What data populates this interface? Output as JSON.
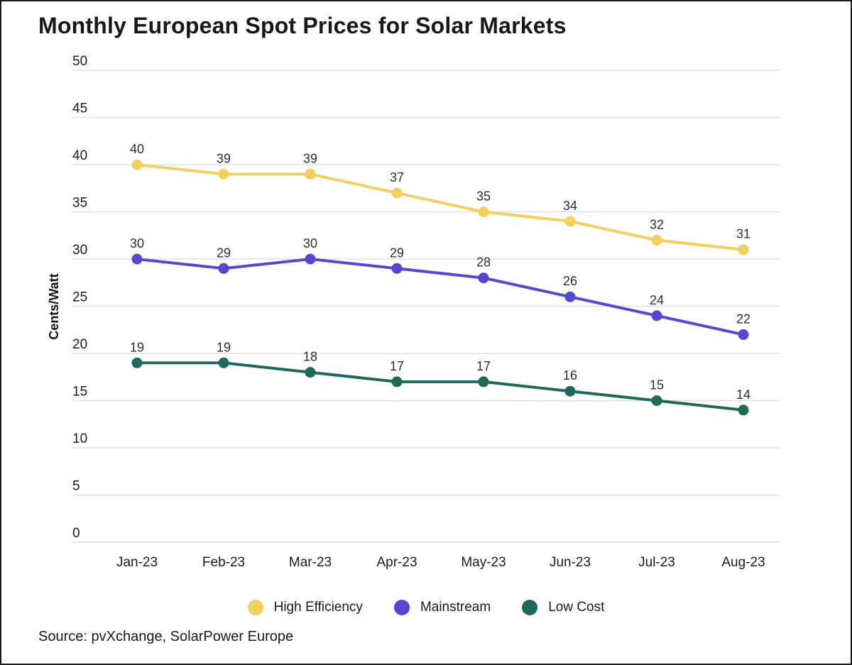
{
  "title": "Monthly European Spot Prices for Solar Markets",
  "source": "Source: pvXchange, SolarPower Europe",
  "chart_data": {
    "type": "line",
    "title": "Monthly European Spot Prices for Solar Markets",
    "categories": [
      "Jan-23",
      "Feb-23",
      "Mar-23",
      "Apr-23",
      "May-23",
      "Jun-23",
      "Jul-23",
      "Aug-23"
    ],
    "series": [
      {
        "name": "High Efficiency",
        "color": "#F2D05B",
        "values": [
          40,
          39,
          39,
          37,
          35,
          34,
          32,
          31
        ]
      },
      {
        "name": "Mainstream",
        "color": "#5646D4",
        "values": [
          30,
          29,
          30,
          29,
          28,
          26,
          24,
          22
        ]
      },
      {
        "name": "Low Cost",
        "color": "#1D6A5B",
        "values": [
          19,
          19,
          18,
          17,
          17,
          16,
          15,
          14
        ]
      }
    ],
    "xlabel": "",
    "ylabel": "Cents/Watt",
    "yticks": [
      0,
      5,
      10,
      15,
      20,
      25,
      30,
      35,
      40,
      45,
      50
    ],
    "ylim": [
      0,
      50
    ],
    "grid": true,
    "data_labels": true,
    "legend_position": "bottom"
  },
  "style": {
    "grid_color": "#DBDBDB",
    "tick_color": "#1B1B1B",
    "data_label_color": "#2E2E2E",
    "background": "#FFFFFF"
  }
}
